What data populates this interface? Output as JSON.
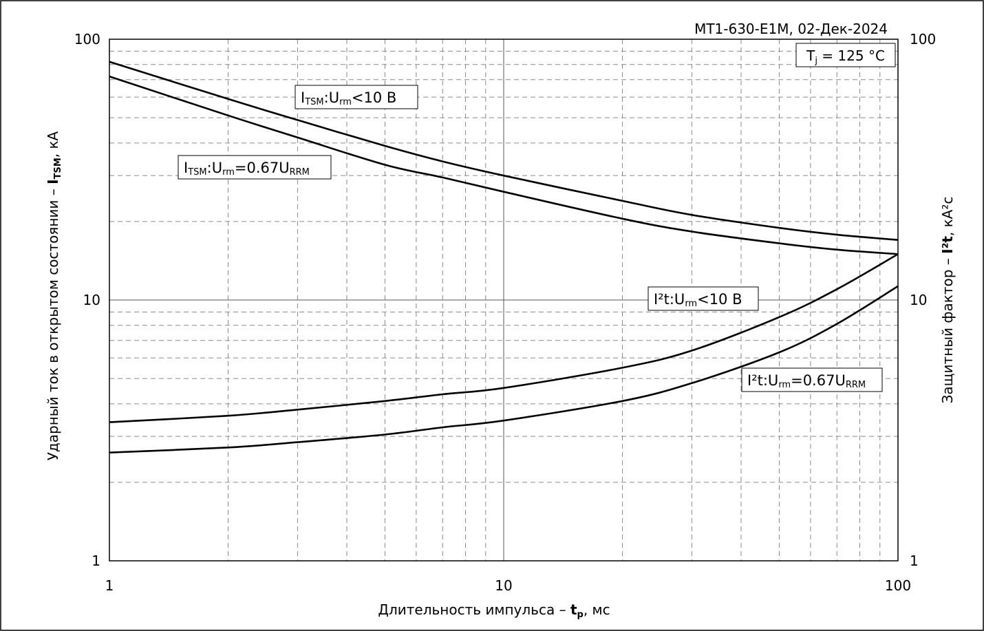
{
  "chart_data": {
    "type": "line",
    "title": "МТ1-630-Е1М, 02-Дек-2024",
    "condition": {
      "main": "T",
      "sub": "j",
      "rest": " = 125 °C"
    },
    "xlabel": {
      "text": "Длительность импульса – ",
      "bold": "t",
      "bold_sub": "p",
      "tail": ", мс"
    },
    "ylabel": {
      "text": "Ударный ток в открытом состоянии – ",
      "bold": "I",
      "bold_sub": "TSM",
      "tail": ", кА"
    },
    "y2label": {
      "text": "Защитный фактор – ",
      "bold": "I²t",
      "tail": ", кА²с"
    },
    "x_scale": "log",
    "y_scale": "log",
    "xlim": [
      1,
      100
    ],
    "ylim": [
      1,
      100
    ],
    "y2lim": [
      1,
      100
    ],
    "x_ticks": [
      "1",
      "10",
      "100"
    ],
    "y_ticks": [
      "1",
      "10",
      "100"
    ],
    "y2_ticks": [
      "1",
      "10",
      "100"
    ],
    "grid": true,
    "series": [
      {
        "name": "ITSM:Urm<10 В",
        "x": [
          1,
          2,
          3,
          5,
          7,
          10,
          20,
          30,
          50,
          70,
          100
        ],
        "y": [
          82,
          59,
          49,
          39,
          34,
          30,
          24,
          21.2,
          18.9,
          17.8,
          17
        ]
      },
      {
        "name": "ITSM:Urm=0.67URRM",
        "x": [
          1,
          2,
          3,
          5,
          7,
          10,
          20,
          30,
          50,
          70,
          100
        ],
        "y": [
          72,
          51,
          42,
          33,
          29.5,
          26,
          20.5,
          18.3,
          16.5,
          15.6,
          15
        ]
      },
      {
        "name": "I²t:Urm<10 В",
        "x": [
          1,
          2,
          3,
          5,
          7,
          10,
          20,
          30,
          50,
          70,
          100
        ],
        "y": [
          3.4,
          3.6,
          3.8,
          4.1,
          4.35,
          4.6,
          5.5,
          6.4,
          8.6,
          11,
          15
        ]
      },
      {
        "name": "I²t:Urm=0.67URRM",
        "x": [
          1,
          2,
          3,
          5,
          7,
          10,
          20,
          30,
          50,
          70,
          100
        ],
        "y": [
          2.6,
          2.72,
          2.85,
          3.05,
          3.25,
          3.45,
          4.1,
          4.8,
          6.3,
          8.1,
          11.3
        ]
      }
    ],
    "labels": [
      {
        "main": "I",
        "sub1": "TSM",
        "mid": ":U",
        "sub2": "rm",
        "tail": "<10 В",
        "tail_sub": ""
      },
      {
        "main": "I",
        "sub1": "TSM",
        "mid": ":U",
        "sub2": "rm",
        "tail": "=0.67U",
        "tail_sub": "RRM"
      },
      {
        "main": "I²t",
        "sub1": "",
        "mid": ":U",
        "sub2": "rm",
        "tail": "<10 В",
        "tail_sub": ""
      },
      {
        "main": "I²t",
        "sub1": "",
        "mid": ":U",
        "sub2": "rm",
        "tail": "=0.67U",
        "tail_sub": "RRM"
      }
    ]
  }
}
